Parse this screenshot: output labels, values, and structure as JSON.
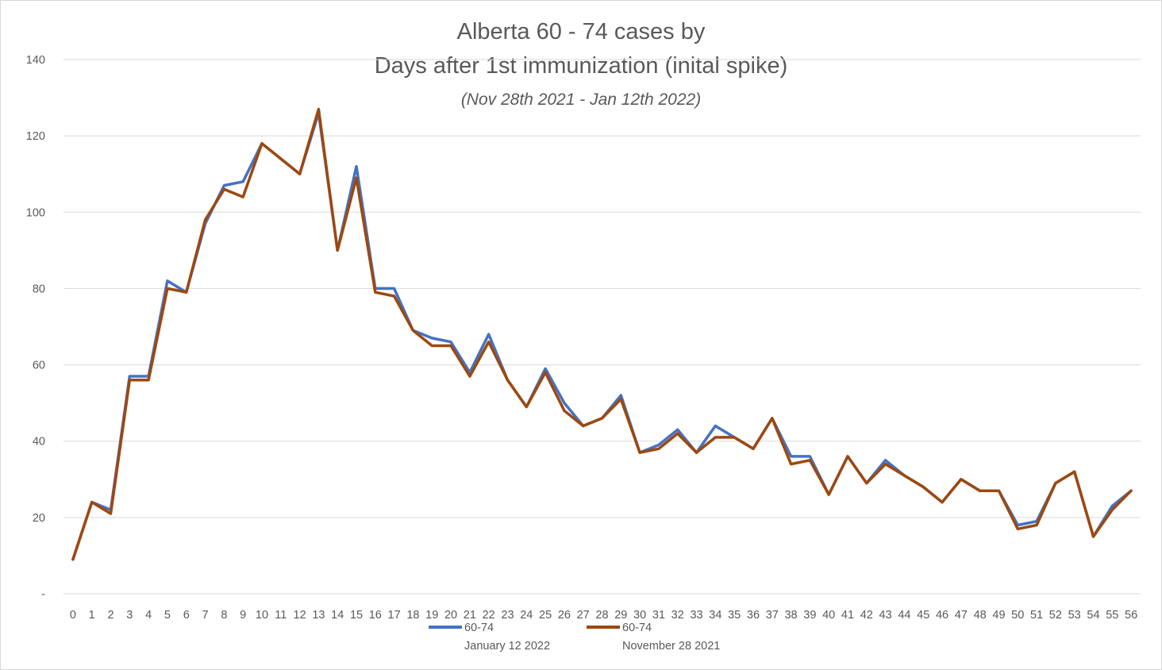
{
  "chart_data": {
    "type": "line",
    "title": "Alberta 60 - 74 cases by",
    "title_line2": "Days after 1st immunization (inital spike)",
    "subtitle": "(Nov 28th 2021 - Jan 12th 2022)",
    "x": [
      "0",
      "1",
      "2",
      "3",
      "4",
      "5",
      "6",
      "7",
      "8",
      "9",
      "10",
      "11",
      "12",
      "13",
      "14",
      "15",
      "16",
      "17",
      "18",
      "19",
      "20",
      "21",
      "22",
      "23",
      "24",
      "25",
      "26",
      "27",
      "28",
      "29",
      "30",
      "31",
      "32",
      "33",
      "34",
      "35",
      "36",
      "37",
      "38",
      "39",
      "40",
      "41",
      "42",
      "43",
      "44",
      "45",
      "46",
      "47",
      "48",
      "49",
      "50",
      "51",
      "52",
      "53",
      "54",
      "55",
      "56"
    ],
    "ylim": [
      0,
      140
    ],
    "yticks": [
      0,
      20,
      40,
      60,
      80,
      100,
      120,
      140
    ],
    "ytick_labels": [
      "-",
      "20",
      "40",
      "60",
      "80",
      "100",
      "120",
      "140"
    ],
    "grid": true,
    "legend_position": "bottom",
    "series": [
      {
        "name": "60-74",
        "caption": "January 12 2022",
        "color": "#4472c4",
        "values": [
          9,
          24,
          22,
          57,
          57,
          82,
          79,
          97,
          107,
          108,
          118,
          114,
          110,
          126,
          90,
          112,
          80,
          80,
          69,
          67,
          66,
          58,
          68,
          56,
          49,
          59,
          50,
          44,
          46,
          52,
          37,
          39,
          43,
          37,
          44,
          41,
          38,
          46,
          36,
          36,
          26,
          36,
          29,
          35,
          31,
          28,
          24,
          30,
          27,
          27,
          18,
          19,
          29,
          32,
          15,
          23,
          27
        ]
      },
      {
        "name": "60-74",
        "caption": "November 28 2021",
        "color": "#9e480e",
        "values": [
          9,
          24,
          21,
          56,
          56,
          80,
          79,
          98,
          106,
          104,
          118,
          114,
          110,
          127,
          90,
          109,
          79,
          78,
          69,
          65,
          65,
          57,
          66,
          56,
          49,
          58,
          48,
          44,
          46,
          51,
          37,
          38,
          42,
          37,
          41,
          41,
          38,
          46,
          34,
          35,
          26,
          36,
          29,
          34,
          31,
          28,
          24,
          30,
          27,
          27,
          17,
          18,
          29,
          32,
          15,
          22,
          27
        ]
      }
    ]
  }
}
